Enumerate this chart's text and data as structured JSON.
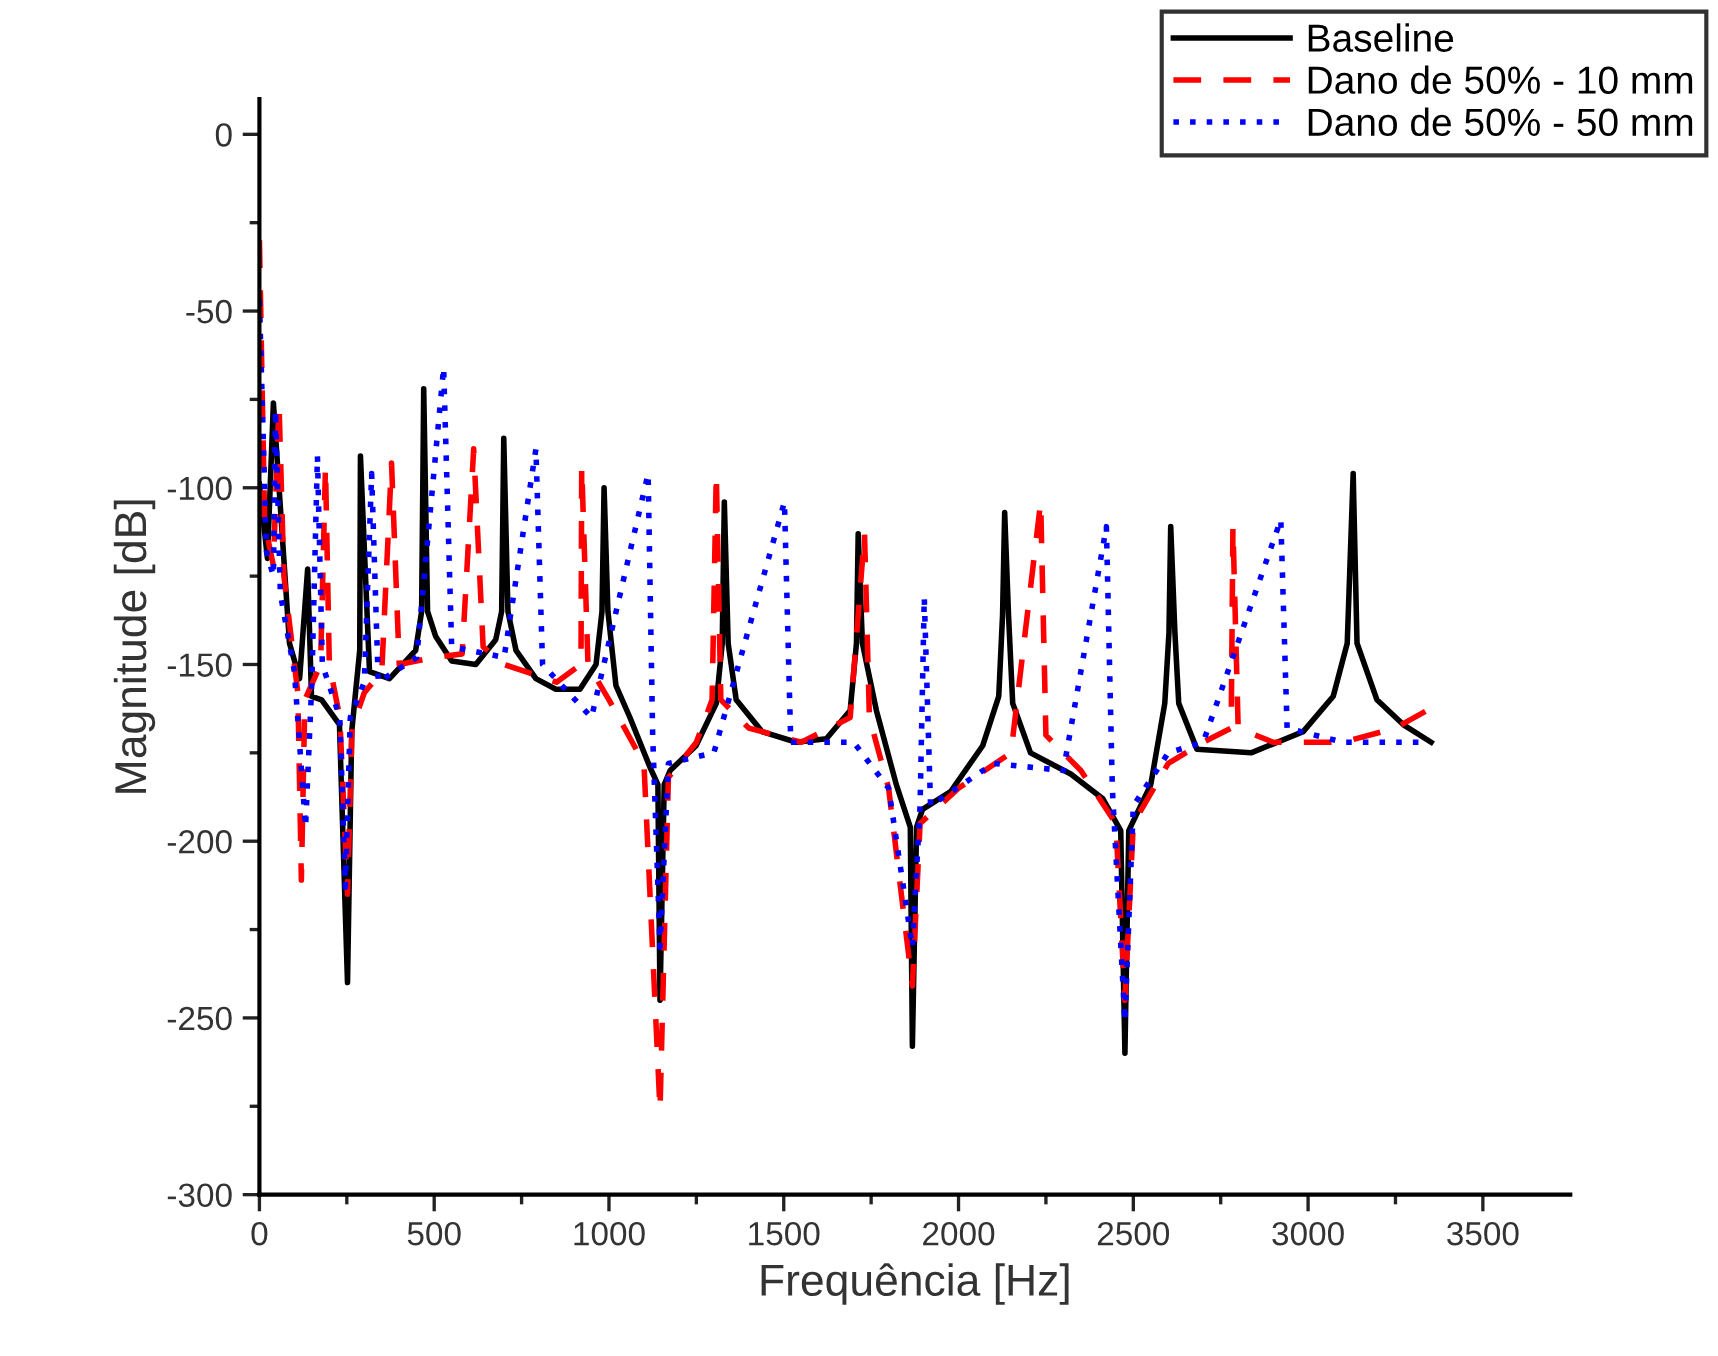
{
  "chart_data": {
    "type": "line",
    "xlabel": "Frequência [Hz]",
    "ylabel": "Magnitude [dB]",
    "xlim": [
      0,
      3750
    ],
    "xticks": [
      0,
      500,
      1000,
      1500,
      2000,
      2500,
      3000,
      3500
    ],
    "ylim": [
      -300,
      10
    ],
    "yticks": [
      -300,
      -250,
      -200,
      -150,
      -100,
      -50,
      0
    ],
    "grid": false,
    "legend": "top right",
    "marker": "none",
    "series": [
      {
        "name": "Baseline",
        "color": "#000000",
        "line_style": "solid",
        "x": [
          0,
          23,
          40,
          86,
          115,
          138,
          149,
          178,
          229,
          252,
          264,
          287,
          289,
          315,
          372,
          447,
          464,
          470,
          481,
          504,
          550,
          619,
          676,
          693,
          699,
          711,
          734,
          791,
          848,
          917,
          963,
          980,
          986,
          997,
          1020,
          1060,
          1117,
          1140,
          1146,
          1158,
          1175,
          1249,
          1307,
          1324,
          1330,
          1341,
          1364,
          1438,
          1536,
          1622,
          1690,
          1708,
          1713,
          1725,
          1765,
          1822,
          1862,
          1868,
          1880,
          1897,
          1977,
          2069,
          2115,
          2126,
          2132,
          2143,
          2155,
          2206,
          2321,
          2413,
          2464,
          2476,
          2487,
          2550,
          2590,
          2602,
          2607,
          2619,
          2630,
          2682,
          2837,
          2986,
          3072,
          3112,
          3129,
          3140,
          3197,
          3272,
          3352
        ],
        "values": [
          -99,
          -120,
          -76,
          -144,
          -154,
          -123,
          -159,
          -160,
          -167,
          -240,
          -169,
          -146,
          -91,
          -152,
          -154,
          -146,
          -135,
          -72,
          -135,
          -142,
          -149,
          -150,
          -143,
          -135,
          -86,
          -135,
          -146,
          -154,
          -157,
          -157,
          -150,
          -135,
          -100,
          -135,
          -156,
          -165,
          -179,
          -184,
          -245,
          -184,
          -180,
          -173,
          -161,
          -144,
          -104,
          -144,
          -160,
          -169,
          -172,
          -171,
          -163,
          -144,
          -113,
          -144,
          -163,
          -184,
          -196,
          -258,
          -196,
          -191,
          -186,
          -173,
          -159,
          -136,
          -107,
          -136,
          -161,
          -175,
          -181,
          -188,
          -197,
          -260,
          -197,
          -184,
          -161,
          -141,
          -111,
          -141,
          -161,
          -174,
          -175,
          -169,
          -159,
          -144,
          -96,
          -144,
          -160,
          -167,
          -172
        ]
      },
      {
        "name": "Dano de 50% - 10 mm",
        "color": "#ff0000",
        "line_style": "dashed",
        "x": [
          0,
          15,
          40,
          56,
          70,
          100,
          110,
          120,
          130,
          175,
          189,
          200,
          230,
          252,
          265,
          300,
          350,
          378,
          400,
          500,
          580,
          613,
          640,
          700,
          850,
          920,
          922,
          940,
          1000,
          1100,
          1146,
          1170,
          1250,
          1295,
          1307,
          1320,
          1400,
          1550,
          1690,
          1731,
          1745,
          1800,
          1868,
          1890,
          2000,
          2150,
          2235,
          2250,
          2350,
          2450,
          2476,
          2500,
          2600,
          2700,
          2780,
          2785,
          2800,
          2900,
          3100,
          3250,
          3340
        ],
        "values": [
          -30,
          -110,
          -122,
          -76,
          -125,
          -150,
          -158,
          -211,
          -160,
          -150,
          -94,
          -150,
          -165,
          -215,
          -168,
          -158,
          -152,
          -93,
          -150,
          -148,
          -147,
          -89,
          -145,
          -150,
          -155,
          -150,
          -94,
          -150,
          -160,
          -178,
          -276,
          -182,
          -172,
          -160,
          -96,
          -160,
          -168,
          -172,
          -165,
          -113,
          -165,
          -185,
          -241,
          -195,
          -185,
          -175,
          -104,
          -170,
          -180,
          -195,
          -245,
          -195,
          -178,
          -172,
          -168,
          -111,
          -168,
          -172,
          -172,
          -168,
          -163
        ]
      },
      {
        "name": "Dano de 50% - 50 mm",
        "color": "#0000ff",
        "line_style": "dotted",
        "x": [
          0,
          20,
          40,
          46,
          60,
          100,
          132,
          150,
          166,
          180,
          230,
          246,
          260,
          300,
          321,
          340,
          450,
          527,
          550,
          700,
          791,
          810,
          950,
          1112,
          1125,
          1146,
          1170,
          1300,
          1502,
          1520,
          1700,
          1800,
          1868,
          1890,
          1902,
          1920,
          2100,
          2300,
          2423,
          2440,
          2476,
          2500,
          2600,
          2700,
          2922,
          2940,
          3100,
          3340
        ],
        "values": [
          -47,
          -118,
          -125,
          -78,
          -130,
          -152,
          -196,
          -155,
          -91,
          -150,
          -165,
          -213,
          -165,
          -155,
          -96,
          -155,
          -148,
          -66,
          -145,
          -148,
          -89,
          -150,
          -165,
          -96,
          -170,
          -230,
          -178,
          -175,
          -104,
          -172,
          -172,
          -185,
          -230,
          -190,
          -131,
          -190,
          -178,
          -180,
          -111,
          -185,
          -251,
          -190,
          -175,
          -172,
          -109,
          -168,
          -172,
          -172
        ]
      }
    ]
  }
}
